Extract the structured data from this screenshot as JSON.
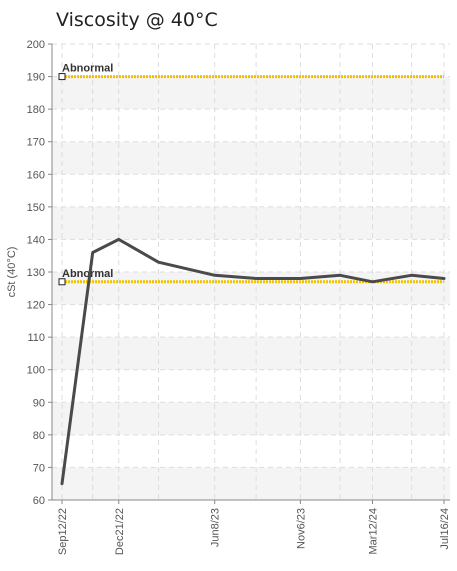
{
  "chart_data": {
    "type": "line",
    "title": "Viscosity @ 40°C",
    "xlabel": "",
    "ylabel": "cSt (40°C)",
    "ylim": [
      60,
      200
    ],
    "yticks": [
      60,
      70,
      80,
      90,
      100,
      110,
      120,
      130,
      140,
      150,
      160,
      170,
      180,
      190,
      200
    ],
    "x_tick_labels": [
      "Sep12/22",
      "Dec21/22",
      "Jun8/23",
      "Nov6/23",
      "Mar12/24",
      "Jul16/24"
    ],
    "grid": true,
    "series": [
      {
        "name": "",
        "color": "#4a4a4a",
        "points": [
          {
            "x": "2022-09-12",
            "y": 65
          },
          {
            "x": "2022-11-05",
            "y": 136
          },
          {
            "x": "2022-12-21",
            "y": 140
          },
          {
            "x": "2023-03-01",
            "y": 133
          },
          {
            "x": "2023-06-08",
            "y": 129
          },
          {
            "x": "2023-08-20",
            "y": 128
          },
          {
            "x": "2023-11-06",
            "y": 128
          },
          {
            "x": "2024-01-15",
            "y": 129
          },
          {
            "x": "2024-03-12",
            "y": 127
          },
          {
            "x": "2024-05-20",
            "y": 129
          },
          {
            "x": "2024-07-16",
            "y": 128
          }
        ]
      }
    ],
    "limits": [
      {
        "label": "Abnormal",
        "value": 190,
        "color": "#f2c200"
      },
      {
        "label": "Abnormal",
        "value": 127,
        "color": "#f2c200"
      }
    ]
  }
}
